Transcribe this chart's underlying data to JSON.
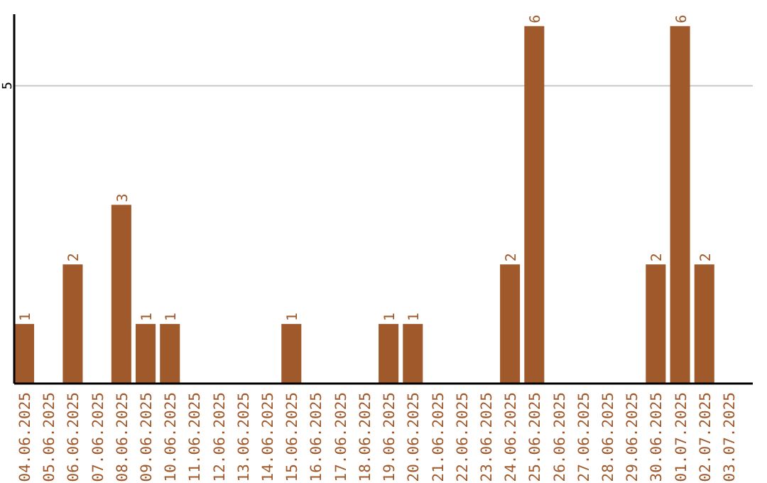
{
  "chart_data": {
    "type": "bar",
    "categories": [
      "04.06.2025",
      "05.06.2025",
      "06.06.2025",
      "07.06.2025",
      "08.06.2025",
      "09.06.2025",
      "10.06.2025",
      "11.06.2025",
      "12.06.2025",
      "13.06.2025",
      "14.06.2025",
      "15.06.2025",
      "16.06.2025",
      "17.06.2025",
      "18.06.2025",
      "19.06.2025",
      "20.06.2025",
      "21.06.2025",
      "22.06.2025",
      "23.06.2025",
      "24.06.2025",
      "25.06.2025",
      "26.06.2025",
      "27.06.2025",
      "28.06.2025",
      "29.06.2025",
      "30.06.2025",
      "01.07.2025",
      "02.07.2025",
      "03.07.2025"
    ],
    "values": [
      1,
      0,
      2,
      0,
      3,
      1,
      1,
      0,
      0,
      0,
      0,
      1,
      0,
      0,
      0,
      1,
      1,
      0,
      0,
      0,
      2,
      6,
      0,
      0,
      0,
      0,
      2,
      6,
      2,
      0
    ],
    "value_labels": [
      "1",
      null,
      "2",
      null,
      "3",
      "1",
      "1",
      null,
      null,
      null,
      null,
      "1",
      null,
      null,
      null,
      "1",
      "1",
      null,
      null,
      null,
      "2",
      "6",
      null,
      null,
      null,
      null,
      "2",
      "6",
      "2",
      null
    ],
    "color": "#a0592b",
    "ylim": [
      0,
      6.2
    ],
    "yticks": [
      5
    ],
    "grid": "y"
  }
}
